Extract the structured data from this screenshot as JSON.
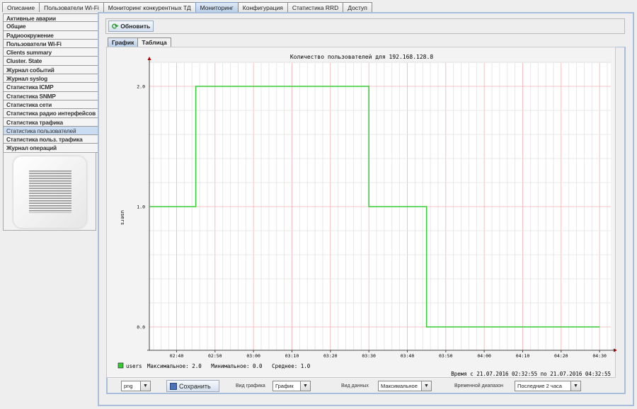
{
  "top_tabs": [
    "Описание",
    "Пользователи Wi-Fi",
    "Мониторинг конкурентных ТД",
    "Мониторинг",
    "Конфигурация",
    "Статистика RRD",
    "Доступ"
  ],
  "active_top_tab": 3,
  "sidebar": {
    "items": [
      "Активные аварии",
      "Общие",
      "Радиоокружение",
      "Пользователи Wi-Fi",
      "Clients summary",
      "Cluster. State",
      "Журнал событий",
      "Журнал syslog",
      "Статистика ICMP",
      "Статистика SNMP",
      "Статистика сети",
      "Статистика радио интерфейсов",
      "Статистика трафика",
      "Статистика пользователей",
      "Статистика польз. трафика",
      "Журнал операций"
    ],
    "active": 13
  },
  "toolbar": {
    "refresh_label": "Обновить"
  },
  "subtabs": [
    "График",
    "Таблица"
  ],
  "chart_data": {
    "type": "line",
    "step": true,
    "title": "Количество пользователей для 192.168.128.8",
    "ylabel": "users",
    "ylim": [
      0,
      2.2
    ],
    "yticks": [
      "0.0",
      "1.0",
      "2.0"
    ],
    "xlim": [
      "02:32:55",
      "04:32:55"
    ],
    "xticks": [
      "02:40",
      "02:50",
      "03:00",
      "03:10",
      "03:20",
      "03:30",
      "03:40",
      "03:50",
      "04:00",
      "04:10",
      "04:20",
      "04:30"
    ],
    "grid": true,
    "series": [
      {
        "name": "users",
        "color": "#33cc33",
        "points": [
          [
            "02:32:55",
            1
          ],
          [
            "02:45",
            2
          ],
          [
            "03:30",
            1
          ],
          [
            "03:45",
            0
          ],
          [
            "04:30",
            0
          ]
        ]
      }
    ],
    "legend": {
      "name": "users",
      "stats": "Максимальное: 2.0   Минимальное: 0.0   Среднее: 1.0"
    },
    "time_range": "Время с 21.07.2016 02:32:55 по 21.07.2016 04:32:55"
  },
  "bottom": {
    "format": "png",
    "save_label": "Сохранить",
    "chart_type_label": "Вид графика",
    "chart_type": "График",
    "data_type_label": "Вид данных",
    "data_type": "Максимальное",
    "range_label": "Временной диапазон",
    "range": "Последние 2 часа"
  }
}
